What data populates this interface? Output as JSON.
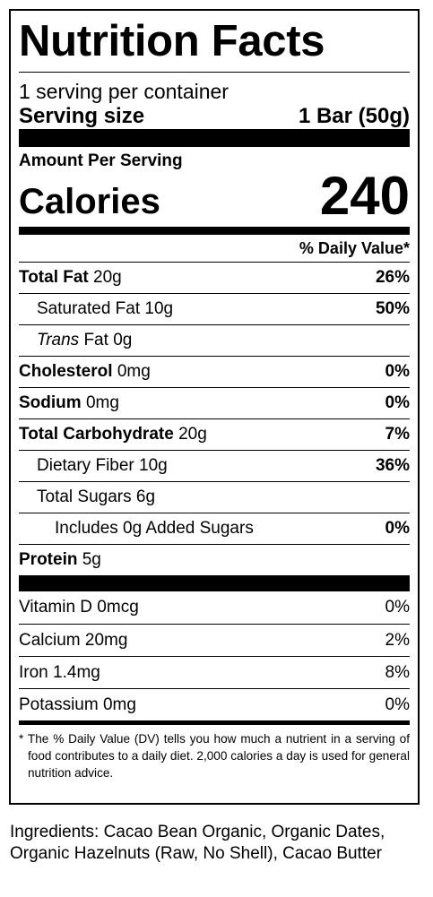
{
  "label": {
    "title": "Nutrition Facts",
    "servings_per_container": "1 serving per container",
    "serving_size_label": "Serving size",
    "serving_size_value": "1 Bar (50g)",
    "amount_per_serving": "Amount Per Serving",
    "calories_label": "Calories",
    "calories_value": "240",
    "daily_value_header": "% Daily Value*",
    "nutrients": [
      {
        "name": "Total Fat",
        "amount": "20g",
        "dv": "26%"
      },
      {
        "name": "Saturated Fat",
        "amount": "10g",
        "dv": "50%"
      },
      {
        "name_italic": "Trans",
        "name": "Fat",
        "amount": "0g",
        "dv": ""
      },
      {
        "name": "Cholesterol",
        "amount": "0mg",
        "dv": "0%"
      },
      {
        "name": "Sodium",
        "amount": "0mg",
        "dv": "0%"
      },
      {
        "name": "Total Carbohydrate",
        "amount": "20g",
        "dv": "7%"
      },
      {
        "name": "Dietary Fiber",
        "amount": "10g",
        "dv": "36%"
      },
      {
        "name": "Total Sugars",
        "amount": "6g",
        "dv": ""
      },
      {
        "name": "Includes 0g Added Sugars",
        "amount": "",
        "dv": "0%"
      },
      {
        "name": "Protein",
        "amount": "5g",
        "dv": ""
      }
    ],
    "vitamins": [
      {
        "name": "Vitamin D",
        "amount": "0mcg",
        "dv": "0%"
      },
      {
        "name": "Calcium",
        "amount": "20mg",
        "dv": "2%"
      },
      {
        "name": "Iron",
        "amount": "1.4mg",
        "dv": "8%"
      },
      {
        "name": "Potassium",
        "amount": "0mg",
        "dv": "0%"
      }
    ],
    "footnote": "* The % Daily Value (DV) tells you how much a nutrient in a serving of food contributes to a daily diet. 2,000 calories a day is used for general nutrition advice."
  },
  "ingredients": "Ingredients: Cacao Bean Organic, Organic Dates, Organic Hazelnuts (Raw, No Shell), Cacao Butter"
}
